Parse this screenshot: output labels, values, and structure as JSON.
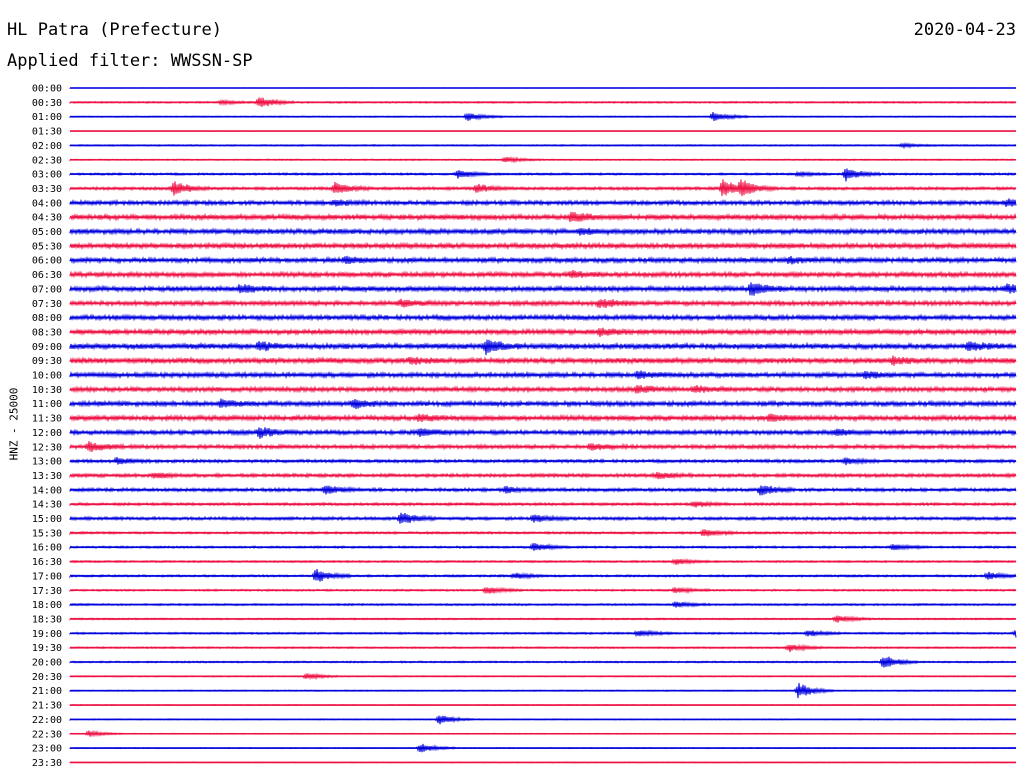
{
  "header": {
    "station": "HL Patra (Prefecture)",
    "date": "2020-04-23",
    "filter": "Applied filter: WWSSN-SP",
    "channel_label": "HNZ - 25000"
  },
  "colors": {
    "even_trace": "#0000dd",
    "odd_trace": "#ee1144"
  },
  "chart_data": {
    "type": "line",
    "title": "HL Patra (Prefecture)",
    "ylabel": "HNZ - 25000",
    "xlabel": "",
    "grid": false,
    "legend": "none",
    "row_labels": [
      "00:00",
      "00:30",
      "01:00",
      "01:30",
      "02:00",
      "02:30",
      "03:00",
      "03:30",
      "04:00",
      "04:30",
      "05:00",
      "05:30",
      "06:00",
      "06:30",
      "07:00",
      "07:30",
      "08:00",
      "08:30",
      "09:00",
      "09:30",
      "10:00",
      "10:30",
      "11:00",
      "11:30",
      "12:00",
      "12:30",
      "13:00",
      "13:30",
      "14:00",
      "14:30",
      "15:00",
      "15:30",
      "16:00",
      "16:30",
      "17:00",
      "17:30",
      "18:00",
      "18:30",
      "19:00",
      "19:30",
      "20:00",
      "20:30",
      "21:00",
      "21:30",
      "22:00",
      "22:30",
      "23:00",
      "23:30"
    ],
    "noise_level": [
      0.2,
      0.8,
      0.6,
      0.2,
      0.7,
      0.7,
      1.0,
      1.4,
      2.0,
      2.5,
      2.4,
      2.5,
      2.3,
      2.3,
      2.5,
      2.2,
      2.3,
      2.4,
      2.6,
      2.6,
      2.3,
      2.2,
      2.3,
      2.4,
      2.1,
      1.9,
      1.5,
      1.7,
      1.6,
      1.3,
      1.5,
      1.1,
      1.0,
      0.9,
      1.0,
      0.9,
      0.9,
      0.8,
      0.9,
      0.8,
      0.8,
      0.6,
      0.6,
      0.5,
      0.5,
      0.5,
      0.5,
      0.5
    ],
    "events": [
      {
        "row": 1,
        "t": 0.2,
        "amp": 6
      },
      {
        "row": 1,
        "t": 0.16,
        "amp": 2
      },
      {
        "row": 2,
        "t": 0.42,
        "amp": 4
      },
      {
        "row": 2,
        "t": 0.68,
        "amp": 5
      },
      {
        "row": 4,
        "t": 0.88,
        "amp": 2
      },
      {
        "row": 5,
        "t": 0.46,
        "amp": 3
      },
      {
        "row": 6,
        "t": 0.41,
        "amp": 4
      },
      {
        "row": 6,
        "t": 0.82,
        "amp": 7
      },
      {
        "row": 6,
        "t": 0.77,
        "amp": 2
      },
      {
        "row": 7,
        "t": 0.11,
        "amp": 7
      },
      {
        "row": 7,
        "t": 0.28,
        "amp": 6
      },
      {
        "row": 7,
        "t": 0.43,
        "amp": 4
      },
      {
        "row": 7,
        "t": 0.69,
        "amp": 9
      },
      {
        "row": 7,
        "t": 0.71,
        "amp": 8
      },
      {
        "row": 8,
        "t": 0.28,
        "amp": 3
      },
      {
        "row": 8,
        "t": 0.99,
        "amp": 4
      },
      {
        "row": 9,
        "t": 0.53,
        "amp": 5
      },
      {
        "row": 10,
        "t": 0.54,
        "amp": 3
      },
      {
        "row": 12,
        "t": 0.29,
        "amp": 3
      },
      {
        "row": 12,
        "t": 0.76,
        "amp": 3
      },
      {
        "row": 13,
        "t": 0.53,
        "amp": 3
      },
      {
        "row": 14,
        "t": 0.72,
        "amp": 6
      },
      {
        "row": 14,
        "t": 0.18,
        "amp": 4
      },
      {
        "row": 14,
        "t": 0.99,
        "amp": 4
      },
      {
        "row": 15,
        "t": 0.56,
        "amp": 5
      },
      {
        "row": 15,
        "t": 0.35,
        "amp": 3
      },
      {
        "row": 17,
        "t": 0.56,
        "amp": 4
      },
      {
        "row": 18,
        "t": 0.2,
        "amp": 4
      },
      {
        "row": 18,
        "t": 0.44,
        "amp": 7
      },
      {
        "row": 18,
        "t": 0.95,
        "amp": 4
      },
      {
        "row": 19,
        "t": 0.36,
        "amp": 3
      },
      {
        "row": 19,
        "t": 0.87,
        "amp": 3
      },
      {
        "row": 20,
        "t": 0.6,
        "amp": 3
      },
      {
        "row": 20,
        "t": 0.84,
        "amp": 3
      },
      {
        "row": 21,
        "t": 0.6,
        "amp": 4
      },
      {
        "row": 21,
        "t": 0.66,
        "amp": 3
      },
      {
        "row": 22,
        "t": 0.16,
        "amp": 4
      },
      {
        "row": 22,
        "t": 0.3,
        "amp": 4
      },
      {
        "row": 23,
        "t": 0.37,
        "amp": 3
      },
      {
        "row": 23,
        "t": 0.74,
        "amp": 3
      },
      {
        "row": 24,
        "t": 0.2,
        "amp": 5
      },
      {
        "row": 24,
        "t": 0.37,
        "amp": 4
      },
      {
        "row": 24,
        "t": 0.81,
        "amp": 3
      },
      {
        "row": 25,
        "t": 0.02,
        "amp": 5
      },
      {
        "row": 25,
        "t": 0.55,
        "amp": 3
      },
      {
        "row": 26,
        "t": 0.05,
        "amp": 3
      },
      {
        "row": 26,
        "t": 0.82,
        "amp": 3
      },
      {
        "row": 27,
        "t": 0.09,
        "amp": 3
      },
      {
        "row": 27,
        "t": 0.62,
        "amp": 3
      },
      {
        "row": 28,
        "t": 0.27,
        "amp": 4
      },
      {
        "row": 28,
        "t": 0.73,
        "amp": 5
      },
      {
        "row": 28,
        "t": 0.46,
        "amp": 3
      },
      {
        "row": 29,
        "t": 0.66,
        "amp": 3
      },
      {
        "row": 30,
        "t": 0.35,
        "amp": 6
      },
      {
        "row": 30,
        "t": 0.49,
        "amp": 4
      },
      {
        "row": 31,
        "t": 0.67,
        "amp": 4
      },
      {
        "row": 32,
        "t": 0.49,
        "amp": 4
      },
      {
        "row": 32,
        "t": 0.87,
        "amp": 3
      },
      {
        "row": 33,
        "t": 0.64,
        "amp": 3
      },
      {
        "row": 34,
        "t": 0.26,
        "amp": 7
      },
      {
        "row": 34,
        "t": 0.47,
        "amp": 3
      },
      {
        "row": 34,
        "t": 0.97,
        "amp": 4
      },
      {
        "row": 35,
        "t": 0.44,
        "amp": 4
      },
      {
        "row": 35,
        "t": 0.64,
        "amp": 3
      },
      {
        "row": 36,
        "t": 0.64,
        "amp": 3
      },
      {
        "row": 37,
        "t": 0.81,
        "amp": 4
      },
      {
        "row": 38,
        "t": 0.6,
        "amp": 3
      },
      {
        "row": 38,
        "t": 0.78,
        "amp": 3
      },
      {
        "row": 38,
        "t": 1.0,
        "amp": 4
      },
      {
        "row": 39,
        "t": 0.76,
        "amp": 4
      },
      {
        "row": 40,
        "t": 0.86,
        "amp": 7
      },
      {
        "row": 41,
        "t": 0.25,
        "amp": 3
      },
      {
        "row": 42,
        "t": 0.77,
        "amp": 8
      },
      {
        "row": 44,
        "t": 0.39,
        "amp": 5
      },
      {
        "row": 45,
        "t": 0.02,
        "amp": 3
      },
      {
        "row": 46,
        "t": 0.37,
        "amp": 5
      }
    ]
  }
}
